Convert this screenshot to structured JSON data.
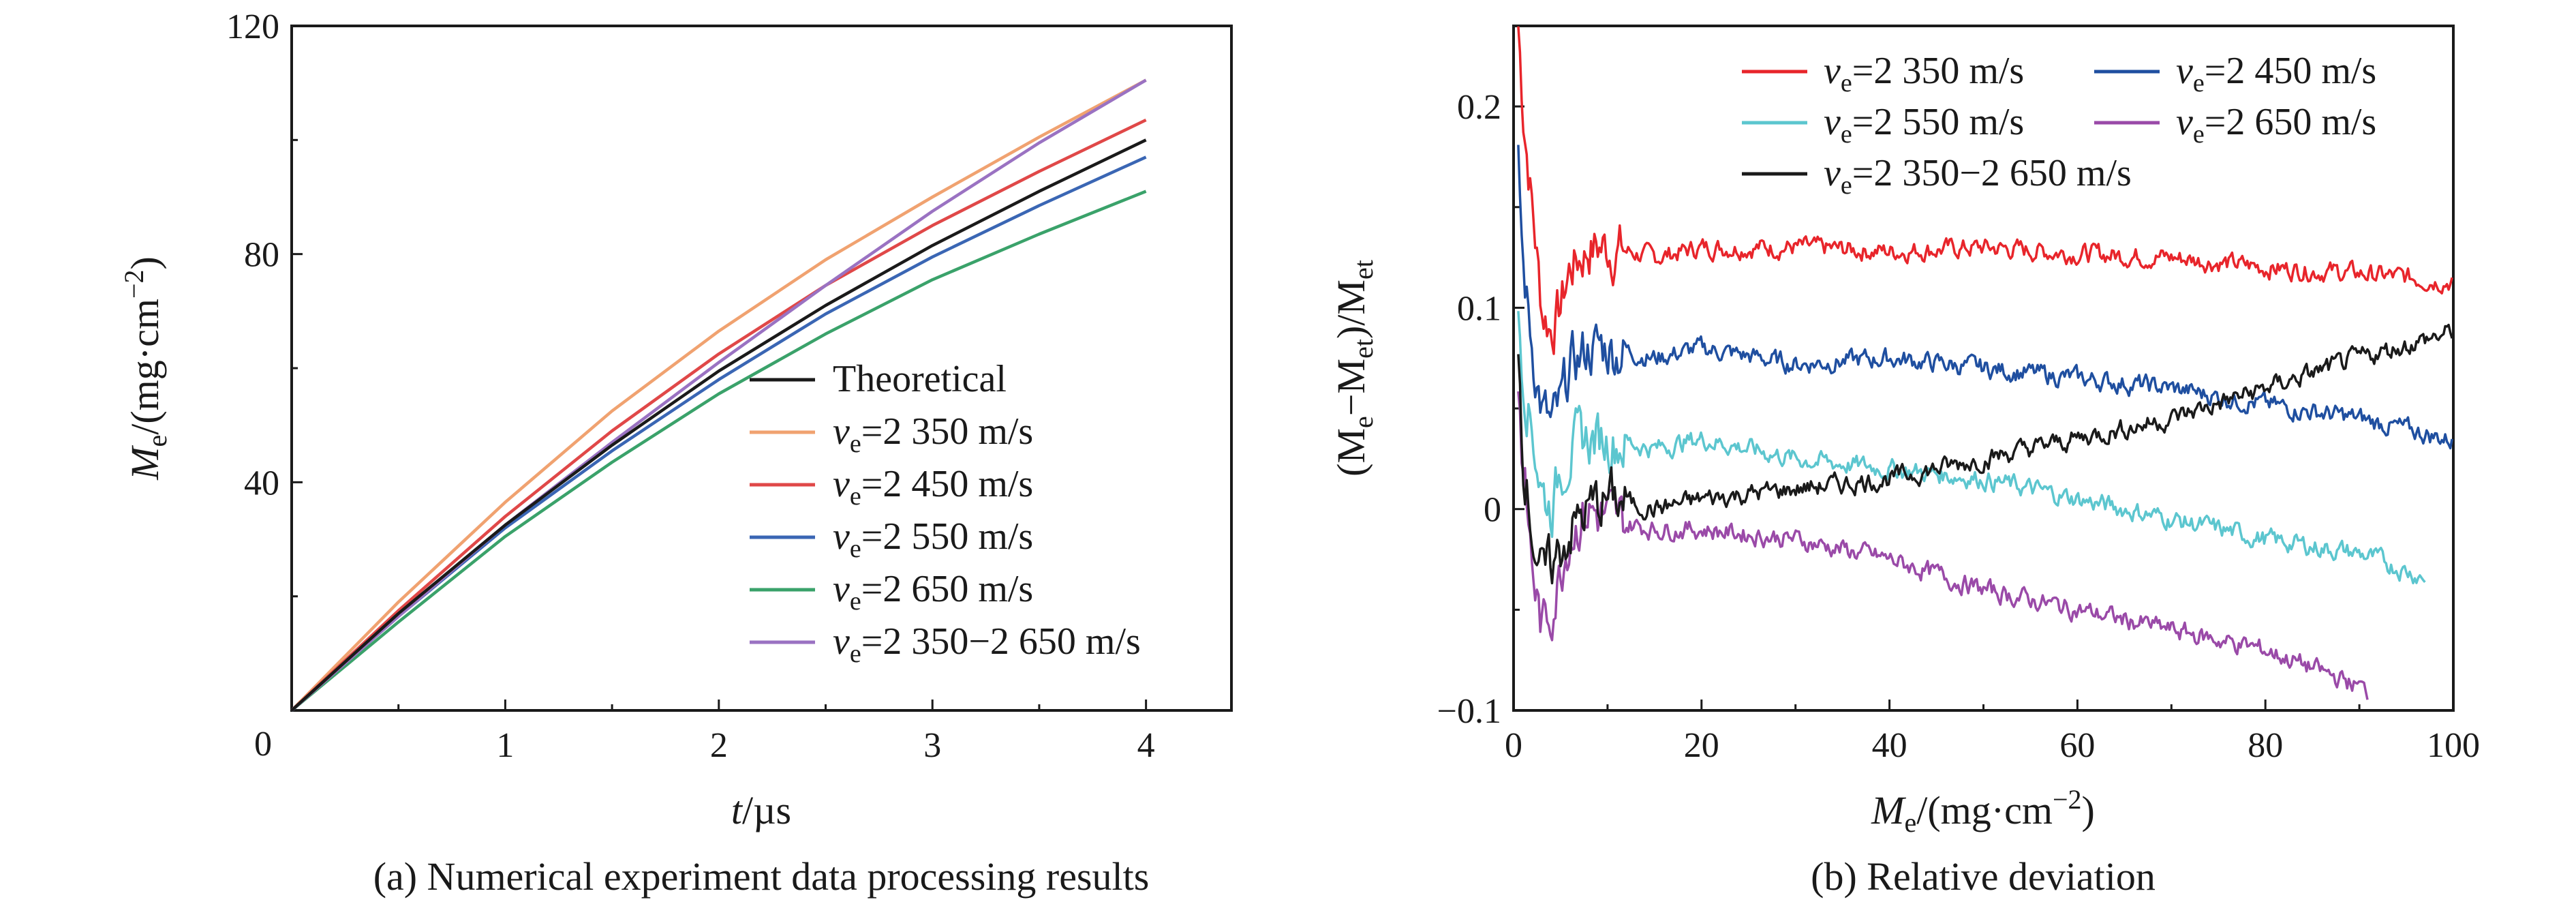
{
  "panels": [
    {
      "caption": "(a) Numerical experiment data processing results",
      "xlabel": {
        "var": "t",
        "unit": "/µs"
      },
      "ylabel": {
        "var": "M",
        "sub": "e",
        "unit": "/(mg·cm",
        "sup": "−2",
        "close": ")"
      },
      "xticks": [
        "0",
        "1",
        "2",
        "3",
        "4"
      ],
      "yticks": [
        "40",
        "80",
        "120"
      ],
      "legend": [
        {
          "name": "Theoretical",
          "color": "#1a1a1a"
        },
        {
          "name": "v",
          "sub": "e",
          "rest": "=2 350 m/s",
          "color": "#f0a270"
        },
        {
          "name": "v",
          "sub": "e",
          "rest": "=2 450 m/s",
          "color": "#e04848"
        },
        {
          "name": "v",
          "sub": "e",
          "rest": "=2 550 m/s",
          "color": "#3a66b4"
        },
        {
          "name": "v",
          "sub": "e",
          "rest": "=2 650 m/s",
          "color": "#3aa26a"
        },
        {
          "name": "v",
          "sub": "e",
          "rest": "=2 350−2 650 m/s",
          "color": "#9a72c2"
        }
      ]
    },
    {
      "caption": "(b) Relative deviation",
      "xlabel": {
        "var": "M",
        "sub": "e",
        "unit": "/(mg·cm",
        "sup": "−2",
        "close": ")"
      },
      "ylabel": {
        "text": "(M",
        "sub1": "e",
        "mid": "−M",
        "sub2": "et",
        "mid2": ")/M",
        "sub3": "et"
      },
      "xticks": [
        "0",
        "20",
        "40",
        "60",
        "80",
        "100"
      ],
      "yticks": [
        "0.2",
        "0.1",
        "0",
        "−0.1"
      ],
      "legend": [
        {
          "name": "v",
          "sub": "e",
          "rest": "=2 350 m/s",
          "color": "#e8252b"
        },
        {
          "name": "v",
          "sub": "e",
          "rest": "=2 450 m/s",
          "color": "#1f4fa0"
        },
        {
          "name": "v",
          "sub": "e",
          "rest": "=2 550 m/s",
          "color": "#5cc6cf"
        },
        {
          "name": "v",
          "sub": "e",
          "rest": "=2 650 m/s",
          "color": "#9a4aa8"
        },
        {
          "name": "v",
          "sub": "e",
          "rest": "=2 350−2 650 m/s",
          "color": "#1a1a1a"
        }
      ]
    }
  ],
  "chart_data": [
    {
      "type": "line",
      "title": "",
      "xlabel": "t/µs",
      "ylabel": "Me/(mg·cm−2)",
      "xlim": [
        0,
        4.4
      ],
      "ylim": [
        0,
        120
      ],
      "grid": false,
      "legend_position": "bottom-right",
      "x": [
        0,
        0.5,
        1,
        1.5,
        2,
        2.5,
        3,
        3.5,
        4
      ],
      "series": [
        {
          "name": "Theoretical",
          "values": [
            0,
            17,
            32.5,
            46.5,
            59.5,
            71,
            81.5,
            91,
            100
          ]
        },
        {
          "name": "ve=2 350 m/s",
          "values": [
            0,
            19,
            36.5,
            52.5,
            66.5,
            79,
            90,
            100.5,
            110.5
          ]
        },
        {
          "name": "ve=2 450 m/s",
          "values": [
            0,
            17.5,
            34,
            49,
            62.5,
            74.5,
            85,
            94.5,
            103.5
          ]
        },
        {
          "name": "ve=2 550 m/s",
          "values": [
            0,
            16.5,
            32,
            45.5,
            58,
            69.5,
            79.5,
            88.5,
            97
          ]
        },
        {
          "name": "ve=2 650 m/s",
          "values": [
            0,
            15.5,
            30.5,
            43.5,
            55.5,
            66,
            75.5,
            83.5,
            91
          ]
        },
        {
          "name": "ve=2 350−2 650 m/s",
          "values": [
            0,
            16.5,
            32.5,
            47,
            61,
            74.5,
            87.5,
            99.5,
            110.5
          ]
        }
      ]
    },
    {
      "type": "line",
      "title": "",
      "xlabel": "Me/(mg·cm−2)",
      "ylabel": "(Me−Met)/Met",
      "xlim": [
        0,
        100
      ],
      "ylim": [
        -0.1,
        0.24
      ],
      "grid": false,
      "legend_position": "top",
      "series": [
        {
          "name": "ve=2 350 m/s",
          "x": [
            0.5,
            1,
            2,
            3,
            4,
            5,
            6,
            8,
            10,
            15,
            20,
            30,
            40,
            50,
            60,
            70,
            80,
            90,
            100
          ],
          "values": [
            0.24,
            0.2,
            0.15,
            0.1,
            0.09,
            0.1,
            0.12,
            0.13,
            0.13,
            0.125,
            0.13,
            0.13,
            0.128,
            0.13,
            0.127,
            0.125,
            0.12,
            0.117,
            0.113
          ]
        },
        {
          "name": "ve=2 450 m/s",
          "x": [
            0.5,
            1,
            2,
            3,
            4,
            5,
            6,
            8,
            10,
            15,
            20,
            30,
            40,
            50,
            60,
            70,
            80,
            90,
            100
          ],
          "values": [
            0.17,
            0.12,
            0.08,
            0.05,
            0.04,
            0.05,
            0.07,
            0.08,
            0.08,
            0.075,
            0.08,
            0.072,
            0.075,
            0.07,
            0.065,
            0.06,
            0.052,
            0.045,
            0.034
          ]
        },
        {
          "name": "ve=2 550 m/s",
          "x": [
            0.5,
            1,
            2,
            3,
            4,
            5,
            6,
            8,
            10,
            15,
            20,
            30,
            40,
            50,
            60,
            70,
            80,
            90,
            97
          ],
          "values": [
            0.1,
            0.07,
            0.04,
            0.01,
            0.0,
            0.02,
            0.03,
            0.035,
            0.035,
            0.03,
            0.035,
            0.025,
            0.02,
            0.015,
            0.005,
            -0.005,
            -0.015,
            -0.022,
            -0.034
          ]
        },
        {
          "name": "ve=2 650 m/s",
          "x": [
            0.5,
            1,
            2,
            3,
            4,
            5,
            6,
            8,
            10,
            15,
            20,
            30,
            40,
            50,
            60,
            70,
            80,
            90,
            91
          ],
          "values": [
            0.06,
            0.02,
            -0.03,
            -0.06,
            -0.05,
            -0.03,
            -0.01,
            0.0,
            -0.005,
            -0.01,
            -0.01,
            -0.015,
            -0.025,
            -0.04,
            -0.05,
            -0.06,
            -0.07,
            -0.088,
            -0.092
          ]
        },
        {
          "name": "ve=2 350−2 650 m/s",
          "x": [
            0.5,
            1,
            2,
            3,
            4,
            5,
            6,
            8,
            10,
            15,
            20,
            30,
            40,
            50,
            60,
            70,
            80,
            90,
            100
          ],
          "values": [
            0.08,
            0.03,
            -0.01,
            -0.035,
            -0.03,
            -0.02,
            -0.01,
            0.0,
            0.005,
            0.0,
            0.005,
            0.01,
            0.015,
            0.025,
            0.035,
            0.045,
            0.06,
            0.075,
            0.088
          ]
        }
      ]
    }
  ]
}
